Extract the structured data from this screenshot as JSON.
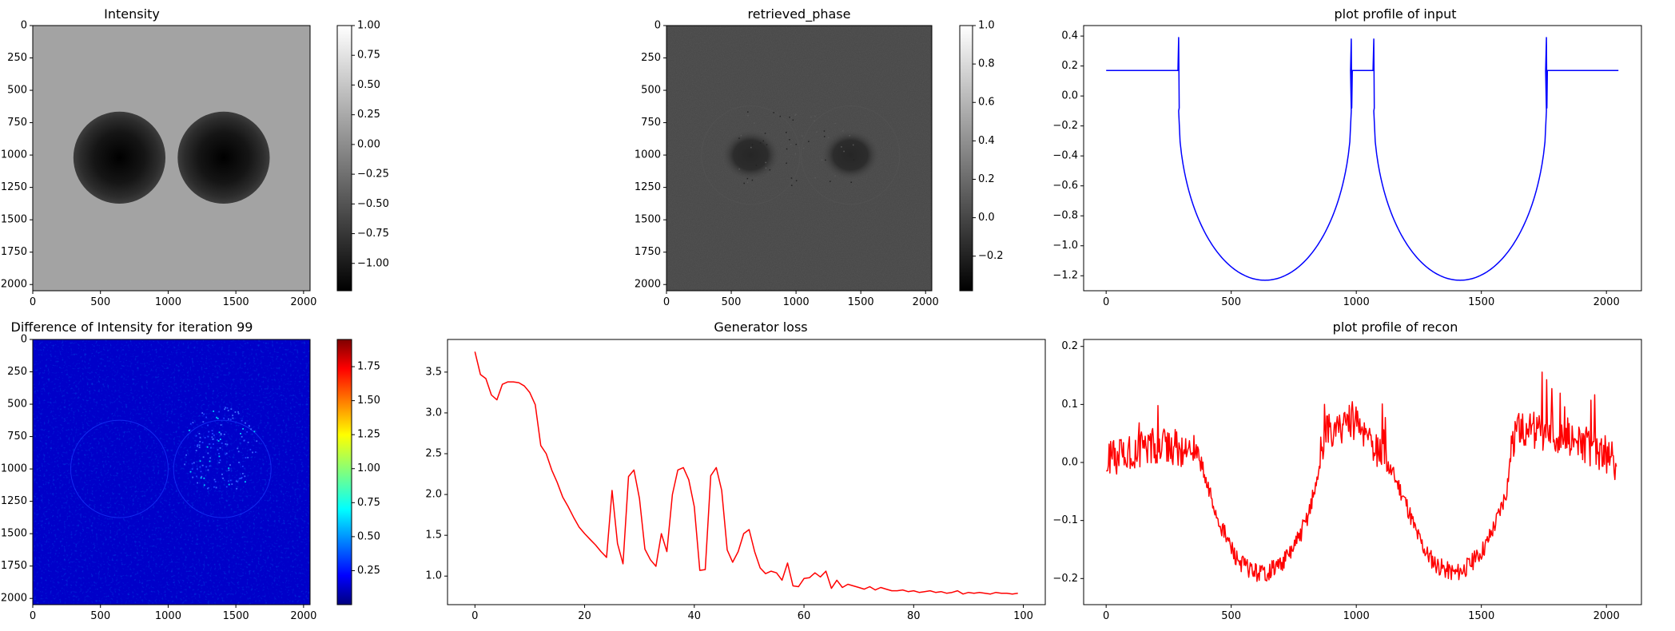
{
  "chart_data": [
    {
      "type": "heatmap",
      "title": "Intensity",
      "colormap": "gray",
      "xlim": [
        0,
        2048
      ],
      "ylim": [
        2048,
        0
      ],
      "xticks": [
        0,
        500,
        1000,
        1500,
        2000
      ],
      "yticks": [
        0,
        250,
        500,
        750,
        1000,
        1250,
        1500,
        1750,
        2000
      ],
      "background_value": 0.17,
      "features": [
        {
          "shape": "circle",
          "cx": 640,
          "cy": 1020,
          "r": 340,
          "min_value": -1.23
        },
        {
          "shape": "circle",
          "cx": 1410,
          "cy": 1020,
          "r": 340,
          "min_value": -1.23
        }
      ],
      "colorbar": {
        "range": [
          -1.23,
          1.0
        ],
        "ticks": [
          "1.00",
          "0.75",
          "0.50",
          "0.25",
          "0.00",
          "−0.25",
          "−0.50",
          "−0.75",
          "−1.00"
        ]
      }
    },
    {
      "type": "heatmap",
      "title": "retrieved_phase",
      "colormap": "gray",
      "xlim": [
        0,
        2048
      ],
      "ylim": [
        2048,
        0
      ],
      "xticks": [
        0,
        500,
        1000,
        1500,
        2000
      ],
      "yticks": [
        0,
        250,
        500,
        750,
        1000,
        1250,
        1500,
        1750,
        2000
      ],
      "background_value": 0.0,
      "features": [
        {
          "shape": "circle",
          "cx": 650,
          "cy": 1000,
          "r": 200,
          "min_value": -0.2
        },
        {
          "shape": "circle",
          "cx": 1420,
          "cy": 1000,
          "r": 200,
          "min_value": -0.2
        }
      ],
      "colorbar": {
        "range": [
          -0.38,
          1.0
        ],
        "ticks": [
          "1.0",
          "0.8",
          "0.6",
          "0.4",
          "0.2",
          "0.0",
          "−0.2"
        ]
      }
    },
    {
      "type": "line",
      "title": "plot profile of input",
      "xlim": [
        -90,
        2140
      ],
      "ylim": [
        -1.3,
        0.47
      ],
      "xticks": [
        0,
        500,
        1000,
        1500,
        2000
      ],
      "yticks": [
        0.4,
        0.2,
        0.0,
        -0.2,
        -0.4,
        -0.6,
        -0.8,
        -1.0,
        -1.2
      ],
      "ytick_labels": [
        "0.4",
        "0.2",
        "0.0",
        "−0.2",
        "−0.4",
        "−0.6",
        "−0.8",
        "−1.0",
        "−1.2"
      ],
      "color": "#0000ff",
      "baseline": 0.17,
      "spikes": [
        {
          "x": 290,
          "y": 0.39
        },
        {
          "x": 980,
          "y": 0.38
        },
        {
          "x": 1070,
          "y": 0.38
        },
        {
          "x": 1760,
          "y": 0.39
        }
      ],
      "wells": [
        {
          "x_start": 290,
          "x_end": 980,
          "center": 635,
          "min": -1.23
        },
        {
          "x_start": 1070,
          "x_end": 1760,
          "center": 1415,
          "min": -1.23
        }
      ]
    },
    {
      "type": "heatmap",
      "title": "Difference of Intensity for iteration 99",
      "colormap": "jet",
      "xlim": [
        0,
        2048
      ],
      "ylim": [
        2048,
        0
      ],
      "xticks": [
        0,
        500,
        1000,
        1500,
        2000
      ],
      "yticks": [
        0,
        250,
        500,
        750,
        1000,
        1250,
        1500,
        1750,
        2000
      ],
      "background_value": 0.05,
      "features": [
        {
          "shape": "ring",
          "cx": 640,
          "cy": 1000,
          "r": 360,
          "value": 0.25
        },
        {
          "shape": "ring",
          "cx": 1400,
          "cy": 1000,
          "r": 360,
          "value": 0.25
        },
        {
          "shape": "noise",
          "cx": 1380,
          "cy": 850,
          "r": 280,
          "value": 0.55
        }
      ],
      "colorbar": {
        "range": [
          0.0,
          1.95
        ],
        "ticks": [
          "1.75",
          "1.50",
          "1.25",
          "1.00",
          "0.75",
          "0.50",
          "0.25"
        ]
      }
    },
    {
      "type": "line",
      "title": "Generator loss",
      "xlim": [
        -5,
        104
      ],
      "ylim": [
        0.65,
        3.9
      ],
      "xticks": [
        0,
        20,
        40,
        60,
        80,
        100
      ],
      "yticks": [
        1.0,
        1.5,
        2.0,
        2.5,
        3.0,
        3.5
      ],
      "ytick_labels": [
        "1.0",
        "1.5",
        "2.0",
        "2.5",
        "3.0",
        "3.5"
      ],
      "color": "#ff0000",
      "x": [
        0,
        1,
        2,
        3,
        4,
        5,
        6,
        7,
        8,
        9,
        10,
        11,
        12,
        13,
        14,
        15,
        16,
        17,
        18,
        19,
        20,
        21,
        22,
        23,
        24,
        25,
        26,
        27,
        28,
        29,
        30,
        31,
        32,
        33,
        34,
        35,
        36,
        37,
        38,
        39,
        40,
        41,
        42,
        43,
        44,
        45,
        46,
        47,
        48,
        49,
        50,
        51,
        52,
        53,
        54,
        55,
        56,
        57,
        58,
        59,
        60,
        61,
        62,
        63,
        64,
        65,
        66,
        67,
        68,
        69,
        70,
        71,
        72,
        73,
        74,
        75,
        76,
        77,
        78,
        79,
        80,
        81,
        82,
        83,
        84,
        85,
        86,
        87,
        88,
        89,
        90,
        91,
        92,
        93,
        94,
        95,
        96,
        97,
        98,
        99
      ],
      "y": [
        3.75,
        3.47,
        3.42,
        3.22,
        3.16,
        3.35,
        3.38,
        3.38,
        3.37,
        3.33,
        3.25,
        3.1,
        2.6,
        2.5,
        2.3,
        2.15,
        1.97,
        1.85,
        1.72,
        1.6,
        1.52,
        1.45,
        1.38,
        1.3,
        1.23,
        2.05,
        1.4,
        1.15,
        2.22,
        2.3,
        1.95,
        1.33,
        1.2,
        1.12,
        1.52,
        1.3,
        2.0,
        2.3,
        2.33,
        2.18,
        1.85,
        1.07,
        1.08,
        2.23,
        2.33,
        2.05,
        1.32,
        1.17,
        1.3,
        1.52,
        1.57,
        1.3,
        1.1,
        1.03,
        1.06,
        1.04,
        0.95,
        1.16,
        0.88,
        0.87,
        0.97,
        0.98,
        1.04,
        0.99,
        1.06,
        0.85,
        0.95,
        0.86,
        0.9,
        0.88,
        0.86,
        0.84,
        0.87,
        0.83,
        0.86,
        0.84,
        0.82,
        0.82,
        0.83,
        0.81,
        0.82,
        0.8,
        0.81,
        0.82,
        0.8,
        0.81,
        0.79,
        0.8,
        0.82,
        0.78,
        0.8,
        0.79,
        0.8,
        0.79,
        0.78,
        0.8,
        0.79,
        0.79,
        0.78,
        0.79
      ]
    },
    {
      "type": "line",
      "title": "plot profile of recon",
      "xlim": [
        -90,
        2140
      ],
      "ylim": [
        -0.245,
        0.212
      ],
      "xticks": [
        0,
        500,
        1000,
        1500,
        2000
      ],
      "yticks": [
        0.2,
        0.1,
        0.0,
        -0.1,
        -0.2
      ],
      "ytick_labels": [
        "0.2",
        "0.1",
        "0.0",
        "−0.1",
        "−0.2"
      ],
      "color": "#ff0000",
      "x": [
        0,
        40,
        80,
        120,
        160,
        200,
        240,
        280,
        320,
        360,
        380,
        400,
        420,
        440,
        480,
        520,
        560,
        600,
        640,
        680,
        720,
        760,
        800,
        840,
        860,
        880,
        920,
        960,
        1000,
        1040,
        1080,
        1120,
        1160,
        1200,
        1240,
        1280,
        1320,
        1360,
        1400,
        1440,
        1480,
        1520,
        1560,
        1600,
        1620,
        1640,
        1680,
        1720,
        1760,
        1800,
        1840,
        1880,
        1920,
        1960,
        2000,
        2040
      ],
      "y": [
        0.0,
        0.01,
        0.02,
        0.02,
        0.03,
        0.03,
        0.03,
        0.025,
        0.02,
        0.015,
        0.0,
        -0.04,
        -0.06,
        -0.09,
        -0.13,
        -0.165,
        -0.18,
        -0.19,
        -0.19,
        -0.18,
        -0.165,
        -0.14,
        -0.1,
        -0.04,
        0.02,
        0.05,
        0.06,
        0.07,
        0.065,
        0.04,
        0.02,
        0.0,
        -0.03,
        -0.07,
        -0.12,
        -0.155,
        -0.175,
        -0.185,
        -0.19,
        -0.18,
        -0.165,
        -0.14,
        -0.1,
        -0.05,
        0.02,
        0.05,
        0.06,
        0.055,
        0.05,
        0.045,
        0.04,
        0.035,
        0.03,
        0.02,
        0.01,
        0.0
      ],
      "noise_amplitude": 0.02
    }
  ]
}
